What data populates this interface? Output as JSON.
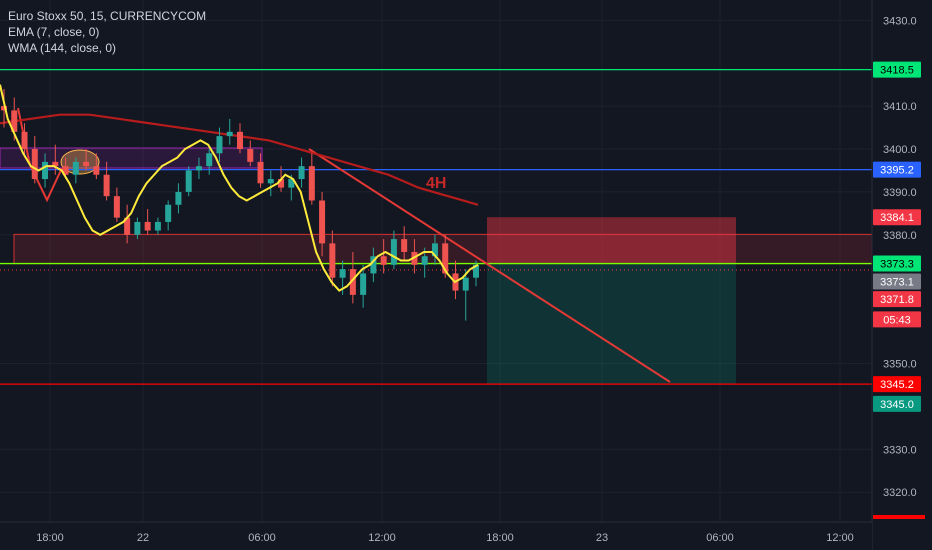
{
  "legend": {
    "symbol": "Euro Stoxx 50, 15, CURRENCYCOM",
    "ema": "EMA (7, close, 0)",
    "wma": "WMA (144, close, 0)"
  },
  "chart_data": {
    "type": "candlestick",
    "y_ticks": [
      3430.0,
      3410.0,
      3400.0,
      3390.0,
      3380.0,
      3350.0,
      3330.0,
      3320.0
    ],
    "x_ticks": [
      "18:00",
      "22",
      "06:00",
      "12:00",
      "18:00",
      "23",
      "06:00",
      "12:00"
    ],
    "price_tags": [
      {
        "label": "3418.5",
        "color": "#00e676",
        "text_color": "#000000"
      },
      {
        "label": "3395.2",
        "color": "#2962ff",
        "text_color": "#ffffff"
      },
      {
        "label": "3384.1",
        "color": "#f23645",
        "text_color": "#ffffff"
      },
      {
        "label": "3373.3",
        "color": "#00e676",
        "text_color": "#000000"
      },
      {
        "label": "3373.1",
        "color": "#787b86",
        "text_color": "#ffffff"
      },
      {
        "label": "3371.8",
        "color": "#f23645",
        "text_color": "#ffffff"
      },
      {
        "label": "05:43",
        "color": "#f23645",
        "text_color": "#ffffff"
      },
      {
        "label": "3345.2",
        "color": "#ff0000",
        "text_color": "#ffffff"
      },
      {
        "label": "3345.0",
        "color": "#089981",
        "text_color": "#ffffff"
      }
    ],
    "horizontal_levels": [
      {
        "value": 3418.5,
        "color": "#00e676"
      },
      {
        "value": 3395.2,
        "color": "#2962ff"
      },
      {
        "value": 3373.3,
        "color": "#76ff03"
      },
      {
        "value": 3345.2,
        "color": "#ff0000"
      }
    ],
    "annotation": "4H",
    "ema_values": [
      3415,
      3407,
      3403,
      3399,
      3396,
      3395,
      3396,
      3396,
      3395,
      3392,
      3388,
      3384,
      3381,
      3380,
      3381,
      3382,
      3383,
      3385,
      3389,
      3392,
      3394,
      3396,
      3397,
      3398,
      3400,
      3401,
      3402,
      3401,
      3398,
      3394,
      3391,
      3389,
      3388,
      3389,
      3390,
      3391,
      3392,
      3394,
      3393,
      3390,
      3383,
      3376,
      3372,
      3369,
      3367,
      3368,
      3370,
      3372,
      3373,
      3375,
      3376,
      3375,
      3374,
      3374,
      3375,
      3376,
      3376,
      3374,
      3371,
      3369,
      3370,
      3372,
      3373
    ],
    "wma_values": [
      3406,
      3406.5,
      3407,
      3407.5,
      3408,
      3408,
      3408,
      3407.5,
      3407,
      3406.5,
      3406,
      3405.5,
      3405,
      3404.5,
      3404,
      3403.5,
      3403,
      3402.5,
      3402,
      3401,
      3400,
      3399,
      3398,
      3397,
      3396,
      3395,
      3394,
      3392.5,
      3391,
      3390,
      3389,
      3388,
      3387
    ],
    "candles": [
      [
        3410,
        3414,
        3405,
        3409
      ],
      [
        3409,
        3412,
        3402,
        3404
      ],
      [
        3404,
        3406,
        3398,
        3400
      ],
      [
        3400,
        3403,
        3392,
        3393
      ],
      [
        3393,
        3399,
        3391,
        3397
      ],
      [
        3397,
        3401,
        3394,
        3396
      ],
      [
        3396,
        3398,
        3393,
        3394
      ],
      [
        3394,
        3398,
        3392,
        3397
      ],
      [
        3397,
        3400,
        3395,
        3396
      ],
      [
        3396,
        3399,
        3393,
        3394
      ],
      [
        3394,
        3397,
        3388,
        3389
      ],
      [
        3389,
        3391,
        3383,
        3384
      ],
      [
        3384,
        3387,
        3378,
        3380
      ],
      [
        3380,
        3384,
        3379,
        3383
      ],
      [
        3383,
        3386,
        3380,
        3381
      ],
      [
        3381,
        3384,
        3380,
        3383
      ],
      [
        3383,
        3388,
        3381,
        3387
      ],
      [
        3387,
        3392,
        3385,
        3390
      ],
      [
        3390,
        3396,
        3389,
        3395
      ],
      [
        3395,
        3398,
        3393,
        3396
      ],
      [
        3396,
        3400,
        3394,
        3399
      ],
      [
        3399,
        3405,
        3397,
        3403
      ],
      [
        3403,
        3407,
        3401,
        3404
      ],
      [
        3404,
        3406,
        3399,
        3400
      ],
      [
        3400,
        3402,
        3396,
        3397
      ],
      [
        3397,
        3399,
        3391,
        3392
      ],
      [
        3392,
        3395,
        3389,
        3393
      ],
      [
        3393,
        3396,
        3390,
        3391
      ],
      [
        3391,
        3394,
        3388,
        3393
      ],
      [
        3393,
        3398,
        3391,
        3396
      ],
      [
        3396,
        3399,
        3387,
        3388
      ],
      [
        3388,
        3390,
        3375,
        3378
      ],
      [
        3378,
        3381,
        3368,
        3370
      ],
      [
        3370,
        3374,
        3366,
        3372
      ],
      [
        3372,
        3376,
        3364,
        3366
      ],
      [
        3366,
        3373,
        3363,
        3371
      ],
      [
        3371,
        3377,
        3369,
        3375
      ],
      [
        3375,
        3379,
        3371,
        3373
      ],
      [
        3373,
        3381,
        3372,
        3379
      ],
      [
        3379,
        3382,
        3374,
        3376
      ],
      [
        3376,
        3379,
        3371,
        3373
      ],
      [
        3373,
        3377,
        3370,
        3375
      ],
      [
        3375,
        3380,
        3373,
        3378
      ],
      [
        3378,
        3380,
        3370,
        3371
      ],
      [
        3371,
        3374,
        3365,
        3367
      ],
      [
        3367,
        3372,
        3360,
        3370
      ],
      [
        3370,
        3374,
        3368,
        3373
      ]
    ]
  }
}
